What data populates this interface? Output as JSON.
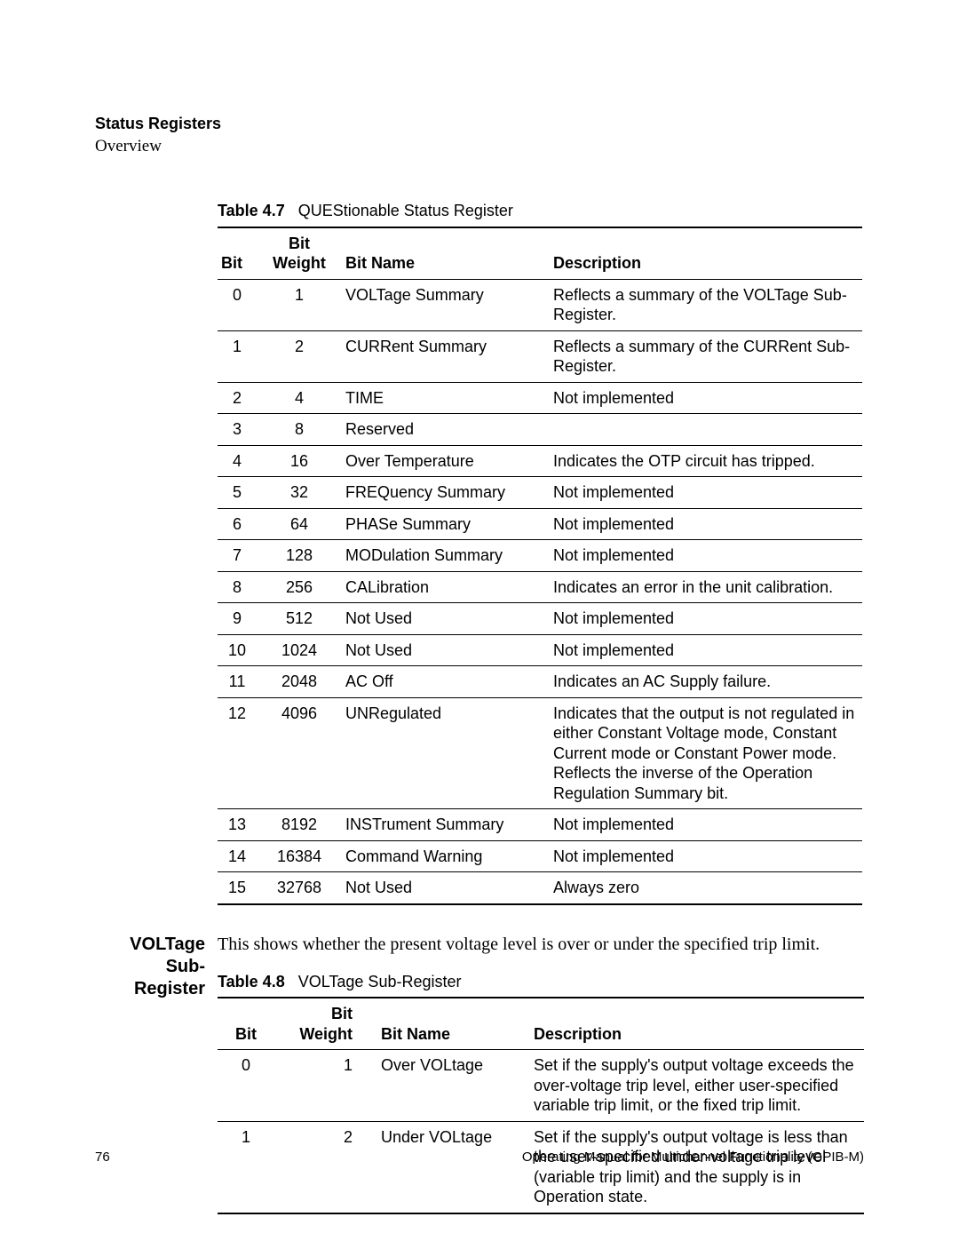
{
  "header": {
    "section_title": "Status Registers",
    "section_sub": "Overview"
  },
  "table47": {
    "caption_label": "Table 4.7",
    "caption_title": "QUEStionable Status Register",
    "columns": {
      "bit": "Bit",
      "bw": "Bit Weight",
      "name": "Bit Name",
      "desc": "Description"
    },
    "rows": [
      {
        "bit": "0",
        "bw": "1",
        "name": "VOLTage Summary",
        "desc": "Reflects a summary of the VOLTage Sub-Register."
      },
      {
        "bit": "1",
        "bw": "2",
        "name": "CURRent Summary",
        "desc": "Reflects a summary of the CURRent Sub-Register."
      },
      {
        "bit": "2",
        "bw": "4",
        "name": "TIME",
        "desc": "Not implemented"
      },
      {
        "bit": "3",
        "bw": "8",
        "name": "Reserved",
        "desc": ""
      },
      {
        "bit": "4",
        "bw": "16",
        "name": "Over Temperature",
        "desc": "Indicates the OTP circuit has tripped."
      },
      {
        "bit": "5",
        "bw": "32",
        "name": "FREQuency Summary",
        "desc": "Not implemented"
      },
      {
        "bit": "6",
        "bw": "64",
        "name": "PHASe Summary",
        "desc": "Not implemented"
      },
      {
        "bit": "7",
        "bw": "128",
        "name": "MODulation Summary",
        "desc": "Not implemented"
      },
      {
        "bit": "8",
        "bw": "256",
        "name": "CALibration",
        "desc": "Indicates an error in the unit calibration."
      },
      {
        "bit": "9",
        "bw": "512",
        "name": "Not Used",
        "desc": "Not implemented"
      },
      {
        "bit": "10",
        "bw": "1024",
        "name": "Not Used",
        "desc": "Not implemented"
      },
      {
        "bit": "11",
        "bw": "2048",
        "name": "AC Off",
        "desc": "Indicates an AC Supply failure."
      },
      {
        "bit": "12",
        "bw": "4096",
        "name": "UNRegulated",
        "desc": "Indicates that the output is not regulated in either Constant Voltage mode, Constant Current mode or Constant Power mode. Reflects the inverse of the Operation Regulation Summary bit."
      },
      {
        "bit": "13",
        "bw": "8192",
        "name": "INSTrument Summary",
        "desc": "Not implemented"
      },
      {
        "bit": "14",
        "bw": "16384",
        "name": "Command Warning",
        "desc": "Not implemented"
      },
      {
        "bit": "15",
        "bw": "32768",
        "name": "Not Used",
        "desc": "Always zero"
      }
    ]
  },
  "section48": {
    "side_label_l1": "VOLTage",
    "side_label_l2": "Sub-Register",
    "intro": "This shows whether the present voltage level is over or under the specified trip limit."
  },
  "table48": {
    "caption_label": "Table 4.8",
    "caption_title": "VOLTage Sub-Register",
    "columns": {
      "bit": "Bit",
      "bw": "Bit Weight",
      "name": "Bit Name",
      "desc": "Description"
    },
    "rows": [
      {
        "bit": "0",
        "bw": "1",
        "name": "Over VOLtage",
        "desc": "Set if the supply's output voltage exceeds the over-voltage trip level, either user-specified variable trip limit, or the fixed trip limit."
      },
      {
        "bit": "1",
        "bw": "2",
        "name": "Under VOLtage",
        "desc": "Set if the supply's output voltage is less than the user-specified under-voltage trip level (variable trip limit) and the supply is in Operation state."
      }
    ]
  },
  "footer": {
    "page": "76",
    "manual": "Operating Manual for Multichannel Functionality (GPIB-M)"
  }
}
